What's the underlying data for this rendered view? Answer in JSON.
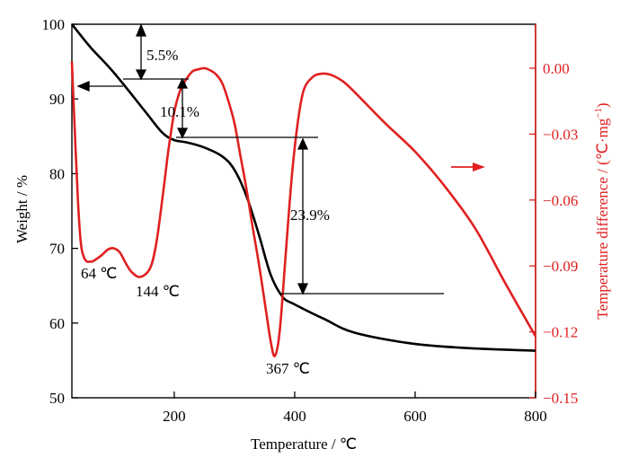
{
  "colors": {
    "weight": "#000000",
    "dta": "#e02020",
    "axis_left": "#000000",
    "axis_right": "#e02020"
  },
  "chart_data": {
    "type": "line",
    "xlabel": "Temperature / ℃",
    "ylabel": "Weight / %",
    "y2label": "Temperature difference / (℃·mg",
    "y2label_sup": "−1",
    "y2label_end": ")",
    "xlim": [
      30,
      800
    ],
    "ylim": [
      50,
      100
    ],
    "y2lim": [
      -0.15,
      0.02
    ],
    "xticks": [
      200,
      400,
      600,
      800
    ],
    "xtick_labels": [
      "200",
      "400",
      "600",
      "800"
    ],
    "yticks": [
      50,
      60,
      70,
      80,
      90,
      100
    ],
    "ytick_labels": [
      "50",
      "60",
      "70",
      "80",
      "90",
      "100"
    ],
    "y2ticks": [
      0.0,
      -0.03,
      -0.06,
      -0.09,
      -0.12,
      -0.15
    ],
    "y2tick_labels": [
      "0.00",
      "−0.03",
      "−0.06",
      "−0.09",
      "−0.12",
      "−0.15"
    ],
    "series": [
      {
        "axis": "left",
        "color": "#000000",
        "x": [
          30,
          60,
          100,
          150,
          180,
          200,
          220,
          250,
          280,
          300,
          320,
          340,
          360,
          380,
          400,
          450,
          500,
          600,
          700,
          800
        ],
        "y": [
          100,
          97,
          93.5,
          88.5,
          85.5,
          84.5,
          84.2,
          83.5,
          82.3,
          80.5,
          77,
          72,
          66.5,
          63.5,
          62.5,
          60.5,
          58.7,
          57.2,
          56.6,
          56.3
        ]
      },
      {
        "axis": "right",
        "color": "#e02020",
        "x": [
          30,
          35,
          40,
          45,
          50,
          55,
          60,
          64,
          70,
          80,
          90,
          100,
          110,
          120,
          130,
          144,
          160,
          170,
          180,
          190,
          200,
          210,
          220,
          230,
          240,
          250,
          260,
          270,
          280,
          290,
          300,
          310,
          320,
          330,
          340,
          350,
          360,
          367,
          375,
          385,
          395,
          405,
          415,
          430,
          445,
          460,
          480,
          500,
          550,
          600,
          650,
          700,
          750,
          800
        ],
        "y": [
          0.003,
          -0.03,
          -0.06,
          -0.08,
          -0.086,
          -0.088,
          -0.088,
          -0.088,
          -0.087,
          -0.085,
          -0.0825,
          -0.082,
          -0.084,
          -0.089,
          -0.093,
          -0.095,
          -0.091,
          -0.08,
          -0.06,
          -0.038,
          -0.02,
          -0.01,
          -0.005,
          -0.0015,
          -0.0005,
          0.0,
          -0.001,
          -0.003,
          -0.007,
          -0.015,
          -0.025,
          -0.04,
          -0.055,
          -0.072,
          -0.088,
          -0.106,
          -0.124,
          -0.131,
          -0.12,
          -0.085,
          -0.05,
          -0.025,
          -0.01,
          -0.004,
          -0.0025,
          -0.003,
          -0.006,
          -0.011,
          -0.025,
          -0.038,
          -0.054,
          -0.073,
          -0.098,
          -0.122
        ]
      }
    ],
    "annotations": [
      {
        "text": "5.5%"
      },
      {
        "text": "10.1%"
      },
      {
        "text": "23.9%"
      },
      {
        "text": "64 ℃"
      },
      {
        "text": "144 ℃"
      },
      {
        "text": "367 ℃"
      }
    ]
  }
}
